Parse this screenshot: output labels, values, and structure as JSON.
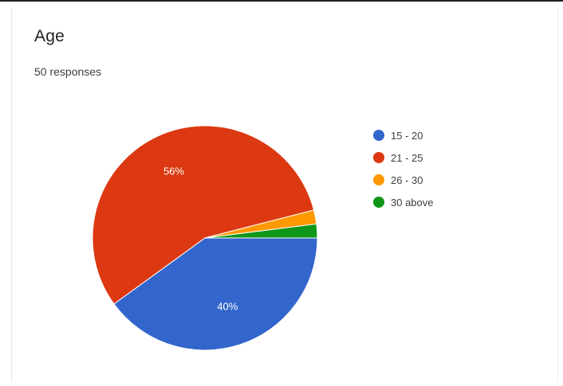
{
  "card": {
    "title": "Age",
    "subtitle": "50 responses"
  },
  "chart_data": {
    "type": "pie",
    "title": "Age",
    "subtitle": "50 responses",
    "legend_position": "right",
    "categories": [
      "15 - 20",
      "21 - 25",
      "26 - 30",
      "30 above"
    ],
    "values": [
      40,
      56,
      2,
      2
    ],
    "unit": "%",
    "data_labels": [
      "40%",
      "56%",
      "",
      ""
    ],
    "colors": [
      "#3366cc",
      "#dc3912",
      "#ff9900",
      "#109618"
    ]
  }
}
